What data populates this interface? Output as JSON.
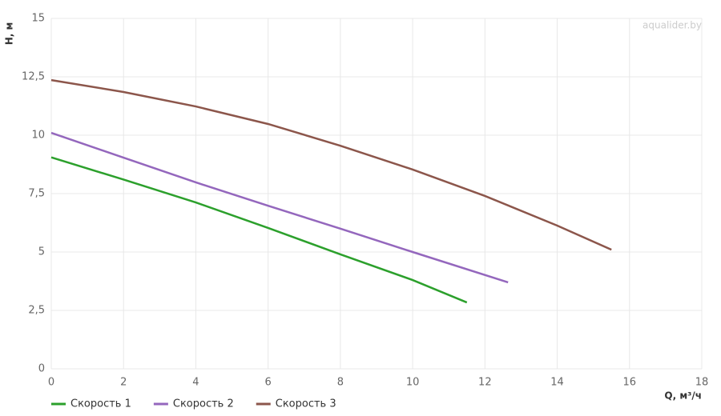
{
  "chart_data": {
    "type": "line",
    "watermark": "aqualider.by",
    "y_label": "H, м",
    "x_label": "Q, м³/ч",
    "xlim": [
      0,
      18
    ],
    "xticks": [
      0,
      2,
      4,
      6,
      8,
      10,
      12,
      14,
      16,
      18
    ],
    "ylim": [
      0,
      15
    ],
    "yticks": [
      0,
      {
        "value": 2.5,
        "label": "2,5"
      },
      5,
      {
        "value": 7.5,
        "label": "7,5"
      },
      10,
      {
        "value": 12.5,
        "label": "12,5"
      },
      15
    ],
    "grid": true,
    "legend": "bottom-left",
    "series": [
      {
        "name": "Скорость 1",
        "color": "#2ca02c",
        "x": [
          0,
          2,
          4,
          6,
          8,
          10,
          11.5
        ],
        "values": [
          9.05,
          8.1,
          7.12,
          6.03,
          4.9,
          3.8,
          2.84
        ]
      },
      {
        "name": "Скорость 2",
        "color": "#9467bd",
        "x": [
          0,
          2,
          4,
          6,
          8,
          10,
          12.64
        ],
        "values": [
          10.1,
          9.04,
          7.98,
          6.98,
          6.0,
          5.0,
          3.7
        ]
      },
      {
        "name": "Скорость 3",
        "color": "#8c564b",
        "x": [
          0,
          2,
          4,
          6,
          8,
          10,
          12,
          14,
          15.5
        ],
        "values": [
          12.36,
          11.85,
          11.23,
          10.48,
          9.55,
          8.53,
          7.4,
          6.13,
          5.1
        ]
      }
    ]
  }
}
